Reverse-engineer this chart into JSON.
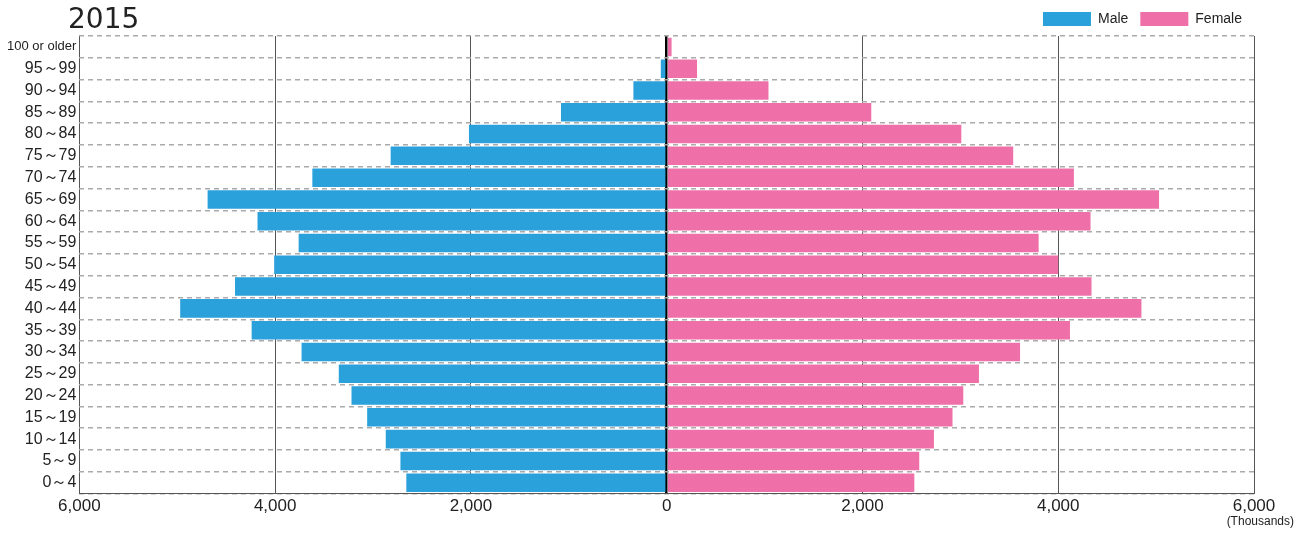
{
  "chart_data": {
    "type": "bar",
    "orientation": "horizontal",
    "title": "2015",
    "annotations": [
      "(Thousands)"
    ],
    "categories": [
      "100 or older",
      "95～99",
      "90～94",
      "85～89",
      "80～84",
      "75～79",
      "70～74",
      "65～69",
      "60～64",
      "55～59",
      "50～54",
      "45～49",
      "40～44",
      "35～39",
      "30～34",
      "25～29",
      "20～24",
      "15～19",
      "10～14",
      "5～9",
      "0～4"
    ],
    "series": [
      {
        "name": "Male",
        "color": "#2aa1db",
        "values": [
          0,
          -60,
          -340,
          -1080,
          -2020,
          -2820,
          -3620,
          -4690,
          -4180,
          -3760,
          -4010,
          -4410,
          -4970,
          -4240,
          -3730,
          -3350,
          -3220,
          -3060,
          -2870,
          -2720,
          -2660
        ]
      },
      {
        "name": "Female",
        "color": "#ef70a8",
        "values": [
          50,
          310,
          1040,
          2090,
          3010,
          3540,
          4160,
          5030,
          4330,
          3800,
          4000,
          4340,
          4850,
          4120,
          3610,
          3190,
          3030,
          2920,
          2730,
          2580,
          2530
        ]
      }
    ],
    "xlim": [
      -6000,
      6000
    ],
    "xticks": [
      {
        "value": -6000,
        "label": "6,000"
      },
      {
        "value": -4000,
        "label": "4,000"
      },
      {
        "value": -2000,
        "label": "2,000"
      },
      0,
      {
        "value": 2000,
        "label": "2,000"
      },
      {
        "value": 4000,
        "label": "4,000"
      },
      {
        "value": 6000,
        "label": "6,000"
      }
    ],
    "stacked": true,
    "grid": true,
    "legend": "top right"
  }
}
